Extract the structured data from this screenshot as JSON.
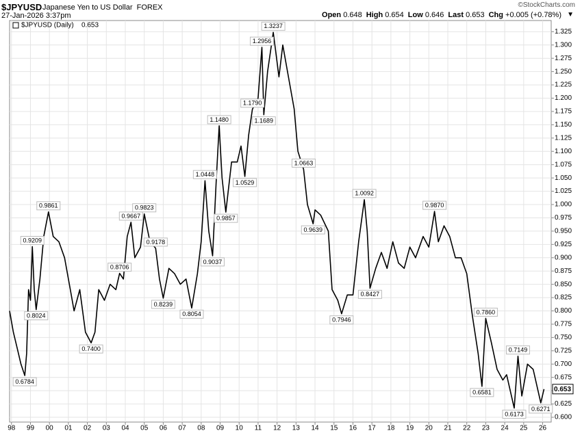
{
  "header": {
    "symbol": "$JPYUSD",
    "name": "Japanese Yen to US Dollar",
    "exchange": "FOREX",
    "timestamp": "27-Jan-2026 3:37pm",
    "quote": [
      {
        "label": "Open",
        "value": "0.648"
      },
      {
        "label": "High",
        "value": "0.654"
      },
      {
        "label": "Low",
        "value": "0.646"
      },
      {
        "label": "Last",
        "value": "0.653"
      },
      {
        "label": "Chg",
        "value": "+0.005 (+0.78%)"
      }
    ],
    "copyright": "©StockCharts.com"
  },
  "chart_data": {
    "type": "line",
    "x": [
      1997.9,
      1998.1,
      1998.3,
      1998.5,
      1998.7,
      1998.8,
      1998.9,
      1999.0,
      1999.1,
      1999.2,
      1999.3,
      1999.5,
      1999.7,
      1999.95,
      2000.2,
      2000.5,
      2000.8,
      2001.1,
      2001.3,
      2001.6,
      2001.9,
      2002.2,
      2002.4,
      2002.6,
      2002.9,
      2003.2,
      2003.5,
      2003.7,
      2003.9,
      2004.1,
      2004.3,
      2004.5,
      2004.8,
      2005.0,
      2005.3,
      2005.6,
      2005.8,
      2006.0,
      2006.3,
      2006.6,
      2006.9,
      2007.2,
      2007.5,
      2007.8,
      2008.0,
      2008.2,
      2008.4,
      2008.6,
      2008.8,
      2008.95,
      2009.1,
      2009.3,
      2009.6,
      2009.9,
      2010.1,
      2010.3,
      2010.5,
      2010.7,
      2011.0,
      2011.2,
      2011.3,
      2011.5,
      2011.8,
      2012.1,
      2012.3,
      2012.5,
      2012.9,
      2013.1,
      2013.4,
      2013.6,
      2013.9,
      2014.0,
      2014.3,
      2014.7,
      2014.9,
      2015.2,
      2015.4,
      2015.7,
      2016.0,
      2016.3,
      2016.6,
      2016.75,
      2016.9,
      2017.2,
      2017.5,
      2017.8,
      2018.1,
      2018.4,
      2018.7,
      2019.0,
      2019.3,
      2019.7,
      2020.0,
      2020.3,
      2020.5,
      2020.8,
      2021.1,
      2021.4,
      2021.7,
      2022.0,
      2022.3,
      2022.6,
      2022.8,
      2023.0,
      2023.3,
      2023.6,
      2023.9,
      2024.1,
      2024.5,
      2024.7,
      2024.9,
      2025.2,
      2025.5,
      2025.9,
      2026.07
    ],
    "series": [
      {
        "name": "$JPYUSD (Daily)",
        "color": "#000000",
        "values": [
          0.8,
          0.76,
          0.73,
          0.7,
          0.6784,
          0.72,
          0.84,
          0.82,
          0.9209,
          0.84,
          0.8024,
          0.86,
          0.94,
          0.9861,
          0.94,
          0.93,
          0.9,
          0.84,
          0.8,
          0.84,
          0.76,
          0.74,
          0.76,
          0.84,
          0.82,
          0.85,
          0.84,
          0.8706,
          0.86,
          0.94,
          0.9667,
          0.9,
          0.92,
          0.9823,
          0.93,
          0.9178,
          0.86,
          0.8239,
          0.88,
          0.87,
          0.85,
          0.86,
          0.8054,
          0.87,
          0.93,
          1.0448,
          0.95,
          0.9037,
          1.05,
          1.148,
          1.05,
          0.9857,
          1.08,
          1.08,
          1.11,
          1.0529,
          1.13,
          1.179,
          1.2,
          1.2956,
          1.1689,
          1.25,
          1.3237,
          1.24,
          1.3,
          1.26,
          1.18,
          1.1,
          1.0663,
          1.0,
          0.9639,
          0.99,
          0.98,
          0.95,
          0.84,
          0.82,
          0.7946,
          0.83,
          0.83,
          0.93,
          1.0092,
          0.95,
          0.8427,
          0.88,
          0.91,
          0.88,
          0.93,
          0.89,
          0.88,
          0.92,
          0.9,
          0.94,
          0.92,
          0.987,
          0.93,
          0.96,
          0.94,
          0.9,
          0.9,
          0.87,
          0.79,
          0.72,
          0.6581,
          0.786,
          0.74,
          0.69,
          0.67,
          0.68,
          0.6173,
          0.7149,
          0.64,
          0.7,
          0.69,
          0.6271,
          0.653
        ]
      }
    ],
    "annotations": [
      {
        "x": 1998.7,
        "y": 0.6784,
        "label": "0.6784"
      },
      {
        "x": 1999.1,
        "y": 0.9209,
        "label": "0.9209"
      },
      {
        "x": 1999.3,
        "y": 0.8024,
        "label": "0.8024"
      },
      {
        "x": 1999.95,
        "y": 0.9861,
        "label": "0.9861"
      },
      {
        "x": 2002.2,
        "y": 0.74,
        "label": "0.7400"
      },
      {
        "x": 2003.7,
        "y": 0.8706,
        "label": "0.8706"
      },
      {
        "x": 2004.3,
        "y": 0.9667,
        "label": "0.9667"
      },
      {
        "x": 2005.0,
        "y": 0.9823,
        "label": "0.9823"
      },
      {
        "x": 2005.6,
        "y": 0.9178,
        "label": "0.9178"
      },
      {
        "x": 2006.0,
        "y": 0.8239,
        "label": "0.8239"
      },
      {
        "x": 2007.5,
        "y": 0.8054,
        "label": "0.8054"
      },
      {
        "x": 2008.2,
        "y": 1.0448,
        "label": "1.0448"
      },
      {
        "x": 2008.6,
        "y": 0.9037,
        "label": "0.9037"
      },
      {
        "x": 2008.95,
        "y": 1.148,
        "label": "1.1480"
      },
      {
        "x": 2009.3,
        "y": 0.9857,
        "label": "0.9857"
      },
      {
        "x": 2010.3,
        "y": 1.0529,
        "label": "1.0529"
      },
      {
        "x": 2010.7,
        "y": 1.179,
        "label": "1.1790"
      },
      {
        "x": 2011.2,
        "y": 1.2956,
        "label": "1.2956"
      },
      {
        "x": 2011.3,
        "y": 1.1689,
        "label": "1.1689"
      },
      {
        "x": 2011.8,
        "y": 1.3237,
        "label": "1.3237"
      },
      {
        "x": 2013.4,
        "y": 1.0663,
        "label": "1.0663"
      },
      {
        "x": 2013.9,
        "y": 0.9639,
        "label": "0.9639"
      },
      {
        "x": 2015.4,
        "y": 0.7946,
        "label": "0.7946"
      },
      {
        "x": 2016.6,
        "y": 1.0092,
        "label": "1.0092"
      },
      {
        "x": 2016.9,
        "y": 0.8427,
        "label": "0.8427"
      },
      {
        "x": 2020.3,
        "y": 0.987,
        "label": "0.9870"
      },
      {
        "x": 2022.8,
        "y": 0.6581,
        "label": "0.6581"
      },
      {
        "x": 2023.0,
        "y": 0.786,
        "label": "0.7860"
      },
      {
        "x": 2024.5,
        "y": 0.6173,
        "label": "0.6173"
      },
      {
        "x": 2024.7,
        "y": 0.7149,
        "label": "0.7149"
      },
      {
        "x": 2025.9,
        "y": 0.6271,
        "label": "0.6271"
      }
    ],
    "last": 0.653,
    "xlim": [
      1997.9,
      2026.45
    ],
    "ylim": [
      0.591,
      1.346
    ],
    "grid": true,
    "xticks": [
      {
        "value": 1998,
        "label": "98"
      },
      {
        "value": 1999,
        "label": "99"
      },
      {
        "value": 2000,
        "label": "00"
      },
      {
        "value": 2001,
        "label": "01"
      },
      {
        "value": 2002,
        "label": "02"
      },
      {
        "value": 2003,
        "label": "03"
      },
      {
        "value": 2004,
        "label": "04"
      },
      {
        "value": 2005,
        "label": "05"
      },
      {
        "value": 2006,
        "label": "06"
      },
      {
        "value": 2007,
        "label": "07"
      },
      {
        "value": 2008,
        "label": "08"
      },
      {
        "value": 2009,
        "label": "09"
      },
      {
        "value": 2010,
        "label": "10"
      },
      {
        "value": 2011,
        "label": "11"
      },
      {
        "value": 2012,
        "label": "12"
      },
      {
        "value": 2013,
        "label": "13"
      },
      {
        "value": 2014,
        "label": "14"
      },
      {
        "value": 2015,
        "label": "15"
      },
      {
        "value": 2016,
        "label": "16"
      },
      {
        "value": 2017,
        "label": "17"
      },
      {
        "value": 2018,
        "label": "18"
      },
      {
        "value": 2019,
        "label": "19"
      },
      {
        "value": 2020,
        "label": "20"
      },
      {
        "value": 2021,
        "label": "21"
      },
      {
        "value": 2022,
        "label": "22"
      },
      {
        "value": 2023,
        "label": "23"
      },
      {
        "value": 2024,
        "label": "24"
      },
      {
        "value": 2025,
        "label": "25"
      },
      {
        "value": 2026,
        "label": "26"
      }
    ],
    "yticks": [
      {
        "value": 0.6,
        "label": "0.600"
      },
      {
        "value": 0.625,
        "label": "0.625"
      },
      {
        "value": 0.65,
        "label": "0.650"
      },
      {
        "value": 0.675,
        "label": "0.675"
      },
      {
        "value": 0.7,
        "label": "0.700"
      },
      {
        "value": 0.725,
        "label": "0.725"
      },
      {
        "value": 0.75,
        "label": "0.750"
      },
      {
        "value": 0.775,
        "label": "0.775"
      },
      {
        "value": 0.8,
        "label": "0.800"
      },
      {
        "value": 0.825,
        "label": "0.825"
      },
      {
        "value": 0.85,
        "label": "0.850"
      },
      {
        "value": 0.875,
        "label": "0.875"
      },
      {
        "value": 0.9,
        "label": "0.900"
      },
      {
        "value": 0.925,
        "label": "0.925"
      },
      {
        "value": 0.95,
        "label": "0.950"
      },
      {
        "value": 0.975,
        "label": "0.975"
      },
      {
        "value": 1.0,
        "label": "1.000"
      },
      {
        "value": 1.025,
        "label": "1.025"
      },
      {
        "value": 1.05,
        "label": "1.050"
      },
      {
        "value": 1.075,
        "label": "1.075"
      },
      {
        "value": 1.1,
        "label": "1.100"
      },
      {
        "value": 1.125,
        "label": "1.125"
      },
      {
        "value": 1.15,
        "label": "1.150"
      },
      {
        "value": 1.175,
        "label": "1.175"
      },
      {
        "value": 1.2,
        "label": "1.200"
      },
      {
        "value": 1.225,
        "label": "1.225"
      },
      {
        "value": 1.25,
        "label": "1.250"
      },
      {
        "value": 1.275,
        "label": "1.275"
      },
      {
        "value": 1.3,
        "label": "1.300"
      },
      {
        "value": 1.325,
        "label": "1.325"
      }
    ]
  }
}
